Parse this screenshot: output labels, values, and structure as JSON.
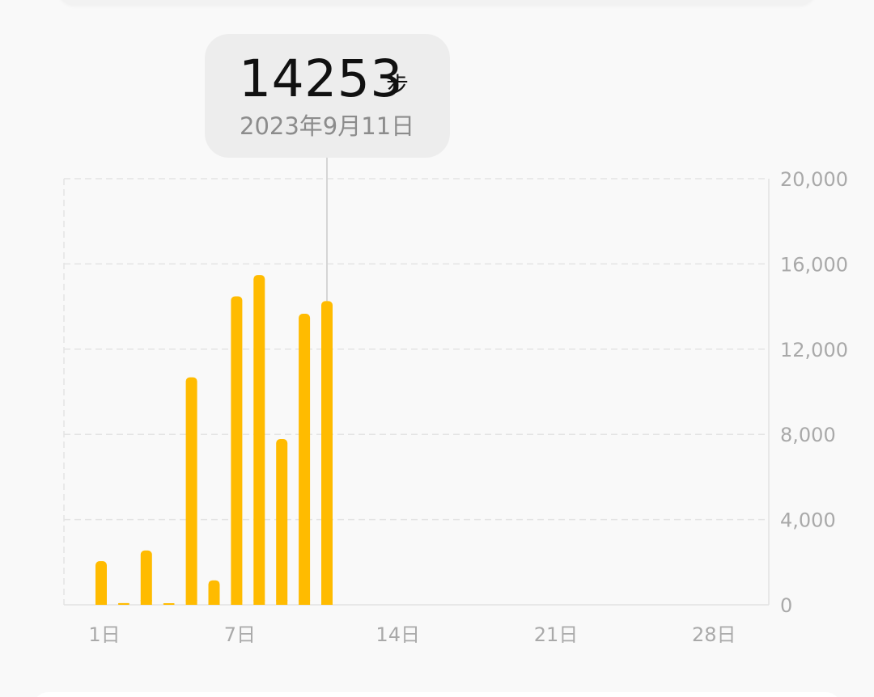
{
  "tooltip": {
    "value": "14253",
    "unit": "步",
    "date": "2023年9月11日"
  },
  "chart_data": {
    "type": "bar",
    "x": [
      1,
      2,
      3,
      4,
      5,
      6,
      7,
      8,
      9,
      10,
      11
    ],
    "values": [
      2050,
      80,
      2550,
      30,
      10680,
      1150,
      14480,
      15480,
      7780,
      13660,
      14253
    ],
    "xlim": [
      1,
      30
    ],
    "x_ticks": [
      1,
      7,
      14,
      21,
      28
    ],
    "x_tick_labels": [
      "1日",
      "7日",
      "14日",
      "21日",
      "28日"
    ],
    "ylim": [
      0,
      20000
    ],
    "y_ticks": [
      0,
      4000,
      8000,
      12000,
      16000,
      20000
    ],
    "y_tick_labels": [
      "0",
      "4,000",
      "8,000",
      "12,000",
      "16,000",
      "20,000"
    ],
    "selected_x": 11,
    "grid": true,
    "y_axis_position": "right",
    "colors": {
      "bar": "#FFBB00",
      "grid": "#e4e4e4",
      "axis": "#e2e2e2",
      "selection_line": "#d5d5d5",
      "tick_text": "#a9a9a9"
    }
  }
}
